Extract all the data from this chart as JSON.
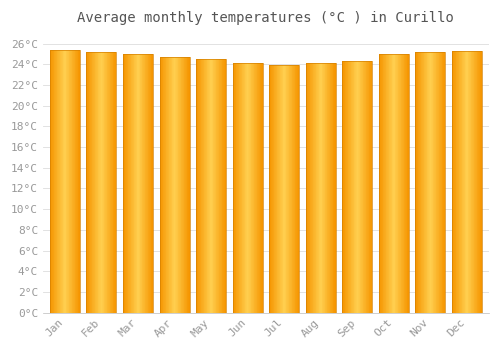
{
  "title": "Average monthly temperatures (°C ) in Curillo",
  "months": [
    "Jan",
    "Feb",
    "Mar",
    "Apr",
    "May",
    "Jun",
    "Jul",
    "Aug",
    "Sep",
    "Oct",
    "Nov",
    "Dec"
  ],
  "values": [
    25.4,
    25.2,
    25.0,
    24.7,
    24.5,
    24.1,
    23.9,
    24.1,
    24.3,
    25.0,
    25.2,
    25.3
  ],
  "bar_color": "#FFA500",
  "bar_highlight": "#FFD050",
  "background_color": "#FFFFFF",
  "grid_color": "#DDDDDD",
  "ylim": [
    0,
    27
  ],
  "ytick_step": 2,
  "title_fontsize": 10,
  "tick_fontsize": 8,
  "font_color": "#999999",
  "title_color": "#555555"
}
